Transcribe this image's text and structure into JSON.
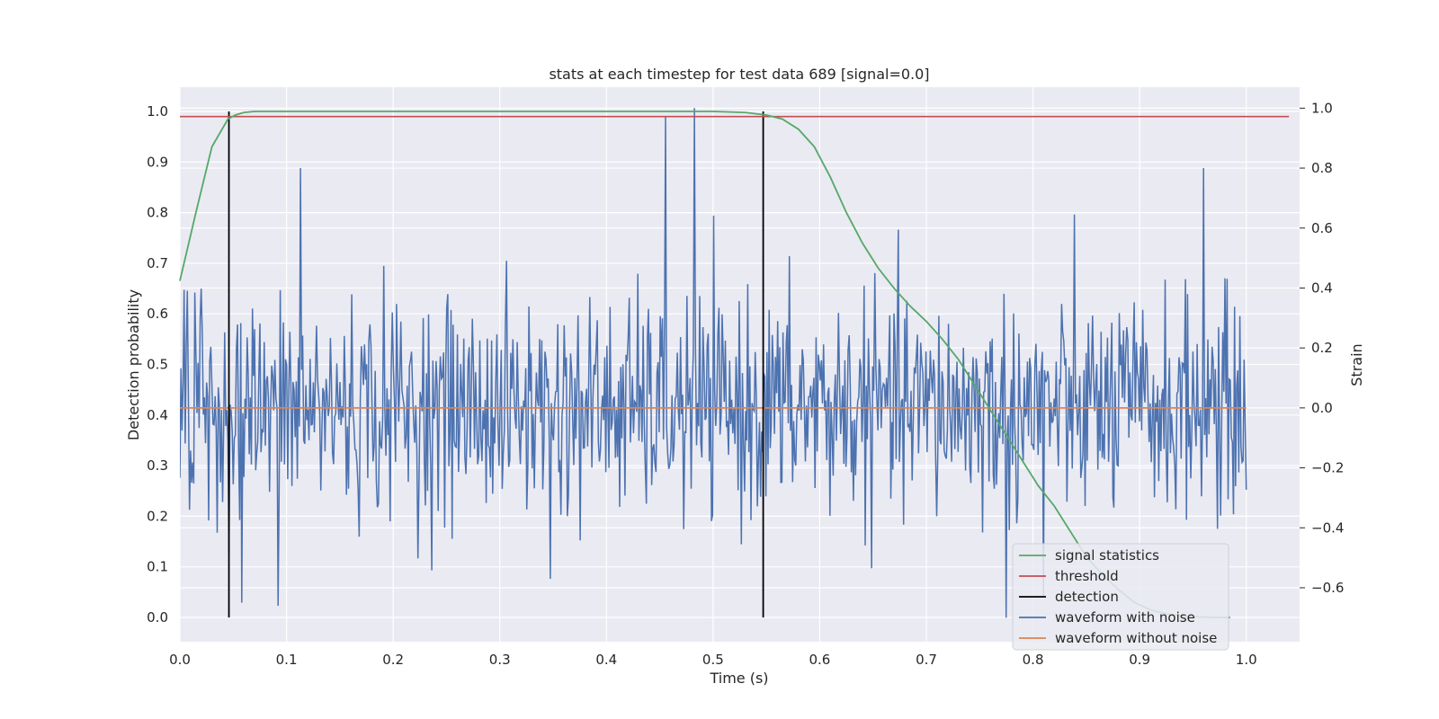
{
  "chart_data": {
    "type": "line",
    "title": "stats at each timestep for test data 689 [signal=0.0]",
    "xlabel": "Time (s)",
    "ylabel_left": "Detection probability",
    "ylabel_right": "Strain",
    "xlim": [
      0.0,
      1.05
    ],
    "ylim_left": [
      -0.048,
      1.048
    ],
    "ylim_right": [
      -0.78,
      1.07
    ],
    "x_ticks": [
      0.0,
      0.1,
      0.2,
      0.3,
      0.4,
      0.5,
      0.6,
      0.7,
      0.8,
      0.9,
      1.0
    ],
    "x_tick_labels": [
      "0.0",
      "0.1",
      "0.2",
      "0.3",
      "0.4",
      "0.5",
      "0.6",
      "0.7",
      "0.8",
      "0.9",
      "1.0"
    ],
    "y_left_ticks": [
      0.0,
      0.1,
      0.2,
      0.3,
      0.4,
      0.5,
      0.6,
      0.7,
      0.8,
      0.9,
      1.0
    ],
    "y_left_tick_labels": [
      "0.0",
      "0.1",
      "0.2",
      "0.3",
      "0.4",
      "0.5",
      "0.6",
      "0.7",
      "0.8",
      "0.9",
      "1.0"
    ],
    "y_right_ticks": [
      -0.6,
      -0.4,
      -0.2,
      0.0,
      0.2,
      0.4,
      0.6,
      0.8,
      1.0
    ],
    "y_right_tick_labels": [
      "−0.6",
      "−0.4",
      "−0.2",
      "0.0",
      "0.2",
      "0.4",
      "0.6",
      "0.8",
      "1.0"
    ],
    "grid": true,
    "legend_position": "lower-right",
    "series": [
      {
        "name": "signal statistics",
        "axis": "left",
        "color": "#55a868",
        "x": [
          0.0,
          0.015,
          0.03,
          0.045,
          0.052,
          0.06,
          0.07,
          0.1,
          0.2,
          0.3,
          0.4,
          0.5,
          0.53,
          0.55,
          0.565,
          0.58,
          0.595,
          0.61,
          0.625,
          0.64,
          0.655,
          0.67,
          0.685,
          0.7,
          0.715,
          0.73,
          0.745,
          0.76,
          0.775,
          0.79,
          0.805,
          0.82,
          0.835,
          0.85,
          0.865,
          0.88,
          0.895,
          0.91,
          0.925,
          0.94,
          0.955,
          0.97,
          0.985
        ],
        "y": [
          0.665,
          0.8,
          0.93,
          0.985,
          0.993,
          0.998,
          1.0,
          1.0,
          1.0,
          1.0,
          1.0,
          1.0,
          0.998,
          0.993,
          0.985,
          0.965,
          0.93,
          0.87,
          0.8,
          0.74,
          0.69,
          0.65,
          0.615,
          0.585,
          0.55,
          0.51,
          0.46,
          0.41,
          0.36,
          0.31,
          0.26,
          0.22,
          0.17,
          0.12,
          0.085,
          0.055,
          0.03,
          0.015,
          0.007,
          0.003,
          0.001,
          0.0,
          0.0
        ]
      },
      {
        "name": "threshold",
        "axis": "left",
        "color": "#c44e52",
        "x": [
          0.0,
          1.04
        ],
        "y": [
          0.99,
          0.99
        ]
      },
      {
        "name": "detection",
        "axis": "left",
        "color": "#000000",
        "vlines": [
          0.046,
          0.547
        ],
        "y_range": [
          0.0,
          1.0
        ]
      },
      {
        "name": "waveform with noise",
        "axis": "right",
        "color": "#4c72b0",
        "x_range": [
          0.0,
          1.0
        ],
        "n_points": 1000,
        "amplitude_std": 0.18,
        "peaks": [
          {
            "x": 0.113,
            "y": 0.8
          },
          {
            "x": 0.455,
            "y": 0.97
          },
          {
            "x": 0.482,
            "y": 1.0
          },
          {
            "x": 0.96,
            "y": 0.8
          },
          {
            "x": 0.092,
            "y": -0.66
          },
          {
            "x": 0.058,
            "y": -0.65
          },
          {
            "x": 0.775,
            "y": -0.7
          },
          {
            "x": 0.347,
            "y": -0.57
          },
          {
            "x": 0.81,
            "y": -0.63
          }
        ]
      },
      {
        "name": "waveform without noise",
        "axis": "right",
        "color": "#dd8452",
        "x": [
          0.0,
          1.0
        ],
        "y": [
          0.0,
          0.0
        ]
      }
    ],
    "legend": [
      {
        "label": "signal statistics",
        "color": "#55a868"
      },
      {
        "label": "threshold",
        "color": "#c44e52"
      },
      {
        "label": "detection",
        "color": "#000000"
      },
      {
        "label": "waveform with noise",
        "color": "#4c72b0"
      },
      {
        "label": "waveform without noise",
        "color": "#dd8452"
      }
    ],
    "colors": {
      "plot_background": "#eaeaf2",
      "grid": "#ffffff",
      "text": "#262626"
    }
  }
}
